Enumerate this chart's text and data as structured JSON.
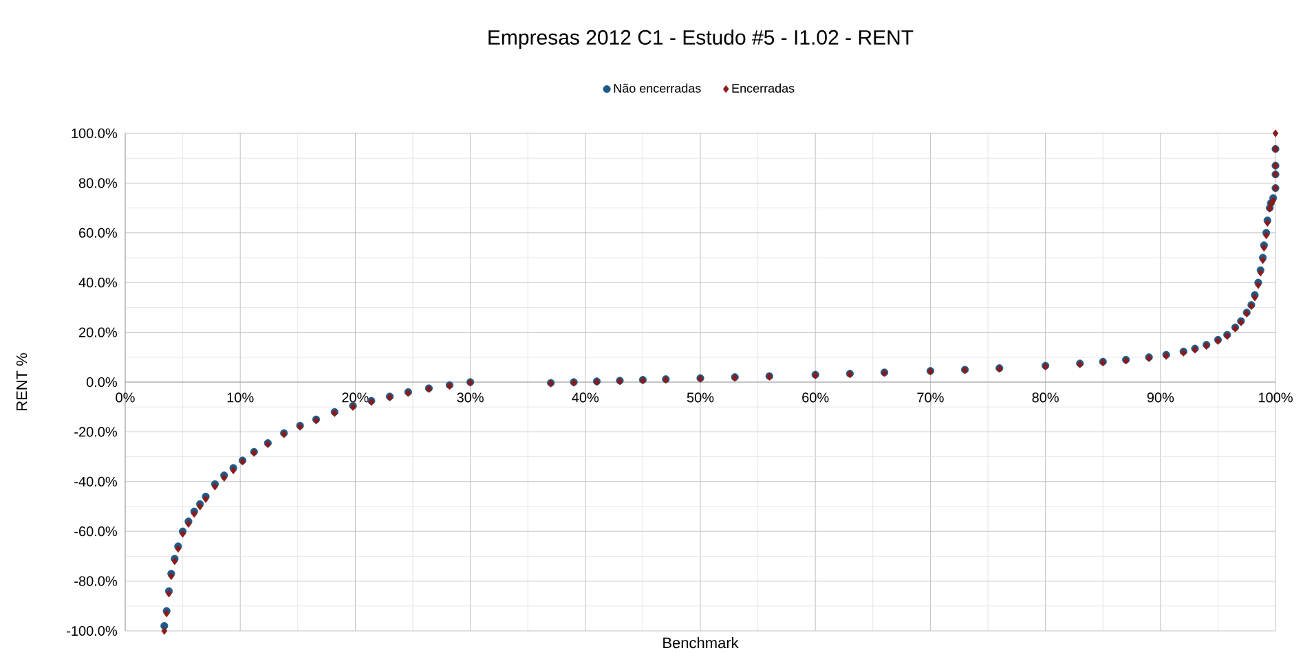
{
  "chart_data": {
    "type": "scatter",
    "title": "Empresas 2012 C1 - Estudo #5 - I1.02 - RENT",
    "xlabel": "Benchmark",
    "ylabel": "RENT %",
    "xlim": [
      0,
      100
    ],
    "ylim": [
      -100,
      100
    ],
    "xticks": [
      {
        "value": 0,
        "label": "0%"
      },
      {
        "value": 10,
        "label": "10%"
      },
      {
        "value": 20,
        "label": "20%"
      },
      {
        "value": 30,
        "label": "30%"
      },
      {
        "value": 40,
        "label": "40%"
      },
      {
        "value": 50,
        "label": "50%"
      },
      {
        "value": 60,
        "label": "60%"
      },
      {
        "value": 70,
        "label": "70%"
      },
      {
        "value": 80,
        "label": "80%"
      },
      {
        "value": 90,
        "label": "90%"
      },
      {
        "value": 100,
        "label": "100%"
      }
    ],
    "yticks": [
      {
        "value": -100,
        "label": "-100.0%"
      },
      {
        "value": -80,
        "label": "-80.0%"
      },
      {
        "value": -60,
        "label": "-60.0%"
      },
      {
        "value": -40,
        "label": "-40.0%"
      },
      {
        "value": -20,
        "label": "-20.0%"
      },
      {
        "value": 0,
        "label": "0.0%"
      },
      {
        "value": 20,
        "label": "20.0%"
      },
      {
        "value": 40,
        "label": "40.0%"
      },
      {
        "value": 60,
        "label": "60.0%"
      },
      {
        "value": 80,
        "label": "80.0%"
      },
      {
        "value": 100,
        "label": "100.0%"
      }
    ],
    "grid": true,
    "legend": "top",
    "series": [
      {
        "name": "Não encerradas",
        "color": "#1f5a87",
        "marker": "circle",
        "x": [
          3.4,
          3.6,
          3.8,
          4.0,
          4.3,
          4.6,
          5.0,
          5.5,
          6.0,
          6.5,
          7.0,
          7.8,
          8.6,
          9.4,
          10.2,
          11.2,
          12.4,
          13.8,
          15.2,
          16.6,
          18.2,
          19.8,
          21.4,
          23.0,
          24.6,
          26.4,
          28.2,
          30.0,
          37.0,
          39.0,
          41.0,
          43.0,
          45.0,
          47.0,
          50.0,
          53.0,
          56.0,
          60.0,
          63.0,
          66.0,
          70.0,
          73.0,
          76.0,
          80.0,
          83.0,
          85.0,
          87.0,
          89.0,
          90.5,
          92.0,
          93.0,
          94.0,
          95.0,
          95.8,
          96.5,
          97.0,
          97.5,
          97.9,
          98.2,
          98.5,
          98.7,
          98.9,
          99.0,
          99.2,
          99.3,
          99.5,
          99.6,
          99.8,
          100.0,
          100.0,
          100.0,
          100.0
        ],
        "values": [
          -98,
          -92,
          -84,
          -77,
          -71,
          -66,
          -60,
          -56,
          -52,
          -49,
          -46,
          -41,
          -37.5,
          -34.5,
          -31.5,
          -28,
          -24.5,
          -20.5,
          -17.5,
          -15,
          -12,
          -9.5,
          -7.5,
          -5.8,
          -4,
          -2.5,
          -1.2,
          0,
          -0.3,
          0,
          0.3,
          0.6,
          0.9,
          1.2,
          1.6,
          2,
          2.4,
          3,
          3.4,
          3.9,
          4.5,
          5,
          5.6,
          6.6,
          7.5,
          8.2,
          9,
          10,
          11,
          12.3,
          13.5,
          15,
          17,
          19,
          22,
          24.5,
          28,
          31,
          35,
          40,
          45,
          50,
          55,
          60,
          65,
          70,
          72,
          74,
          78,
          83.5,
          87,
          93.7
        ]
      },
      {
        "name": "Encerradas",
        "color": "#8b1a1a",
        "marker": "diamond",
        "x": [
          3.4,
          3.6,
          3.8,
          4.0,
          4.3,
          4.6,
          5.0,
          5.5,
          6.0,
          6.5,
          7.0,
          7.8,
          8.6,
          9.4,
          10.2,
          11.2,
          12.4,
          13.8,
          15.2,
          16.6,
          18.2,
          19.8,
          21.4,
          23.0,
          24.6,
          26.4,
          28.2,
          30.0,
          37.0,
          39.0,
          41.0,
          43.0,
          45.0,
          47.0,
          50.0,
          53.0,
          56.0,
          60.0,
          63.0,
          66.0,
          70.0,
          73.0,
          76.0,
          80.0,
          83.0,
          85.0,
          87.0,
          89.0,
          90.5,
          92.0,
          93.0,
          94.0,
          95.0,
          95.8,
          96.5,
          97.0,
          97.5,
          97.9,
          98.2,
          98.5,
          98.7,
          98.9,
          99.0,
          99.2,
          99.3,
          99.5,
          99.6,
          99.8,
          100.0,
          100.0,
          100.0,
          100.0,
          100.0,
          100.0
        ],
        "values": [
          -100,
          -93,
          -85,
          -78,
          -72,
          -67,
          -61,
          -57,
          -53,
          -50,
          -47,
          -42,
          -38.5,
          -35.5,
          -32,
          -28.5,
          -25,
          -21,
          -18,
          -15.5,
          -12.5,
          -10,
          -8,
          -6.2,
          -4.4,
          -2.8,
          -1.5,
          -0.3,
          -0.6,
          -0.3,
          0,
          0.3,
          0.6,
          0.9,
          1.3,
          1.7,
          2.1,
          2.7,
          3.1,
          3.6,
          4.2,
          4.7,
          5.3,
          6.2,
          7.1,
          7.8,
          8.6,
          9.6,
          10.5,
          11.8,
          13,
          14.5,
          16.5,
          18.5,
          21.5,
          24,
          27.5,
          30.5,
          34,
          39,
          44,
          49,
          54,
          59,
          64,
          69.7,
          71.5,
          73,
          78,
          83.5,
          87,
          93.7,
          93.7,
          100
        ]
      }
    ]
  }
}
